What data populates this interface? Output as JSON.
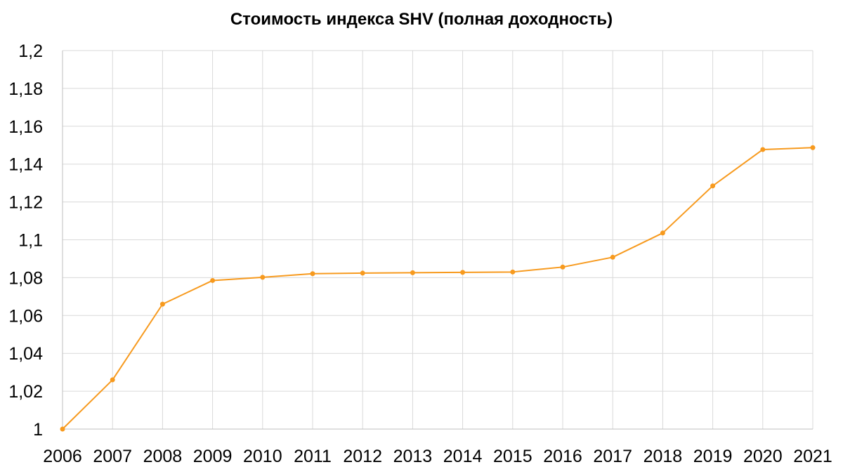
{
  "chart_data": {
    "type": "line",
    "title": "Стоимость индекса SHV (полная доходность)",
    "xlabel": "",
    "ylabel": "",
    "x": [
      "2006",
      "2007",
      "2008",
      "2009",
      "2010",
      "2011",
      "2012",
      "2013",
      "2014",
      "2015",
      "2016",
      "2017",
      "2018",
      "2019",
      "2020",
      "2021"
    ],
    "series": [
      {
        "values": [
          1.0,
          1.026,
          1.066,
          1.0785,
          1.0802,
          1.0821,
          1.0824,
          1.0826,
          1.0828,
          1.083,
          1.0856,
          1.0908,
          1.1036,
          1.1285,
          1.1477,
          1.1487
        ]
      }
    ],
    "ylim": [
      1.0,
      1.2
    ],
    "yticks": [
      "1",
      "1,02",
      "1,04",
      "1,06",
      "1,08",
      "1,1",
      "1,12",
      "1,14",
      "1,16",
      "1,18",
      "1,2"
    ],
    "ytick_values": [
      1.0,
      1.02,
      1.04,
      1.06,
      1.08,
      1.1,
      1.12,
      1.14,
      1.16,
      1.18,
      1.2
    ],
    "grid": true,
    "legend": "none",
    "colors": {
      "line": "#F79A1E",
      "marker": "#F79A1E",
      "grid": "#D9D9D9",
      "axis": "#BFBFBF"
    }
  }
}
